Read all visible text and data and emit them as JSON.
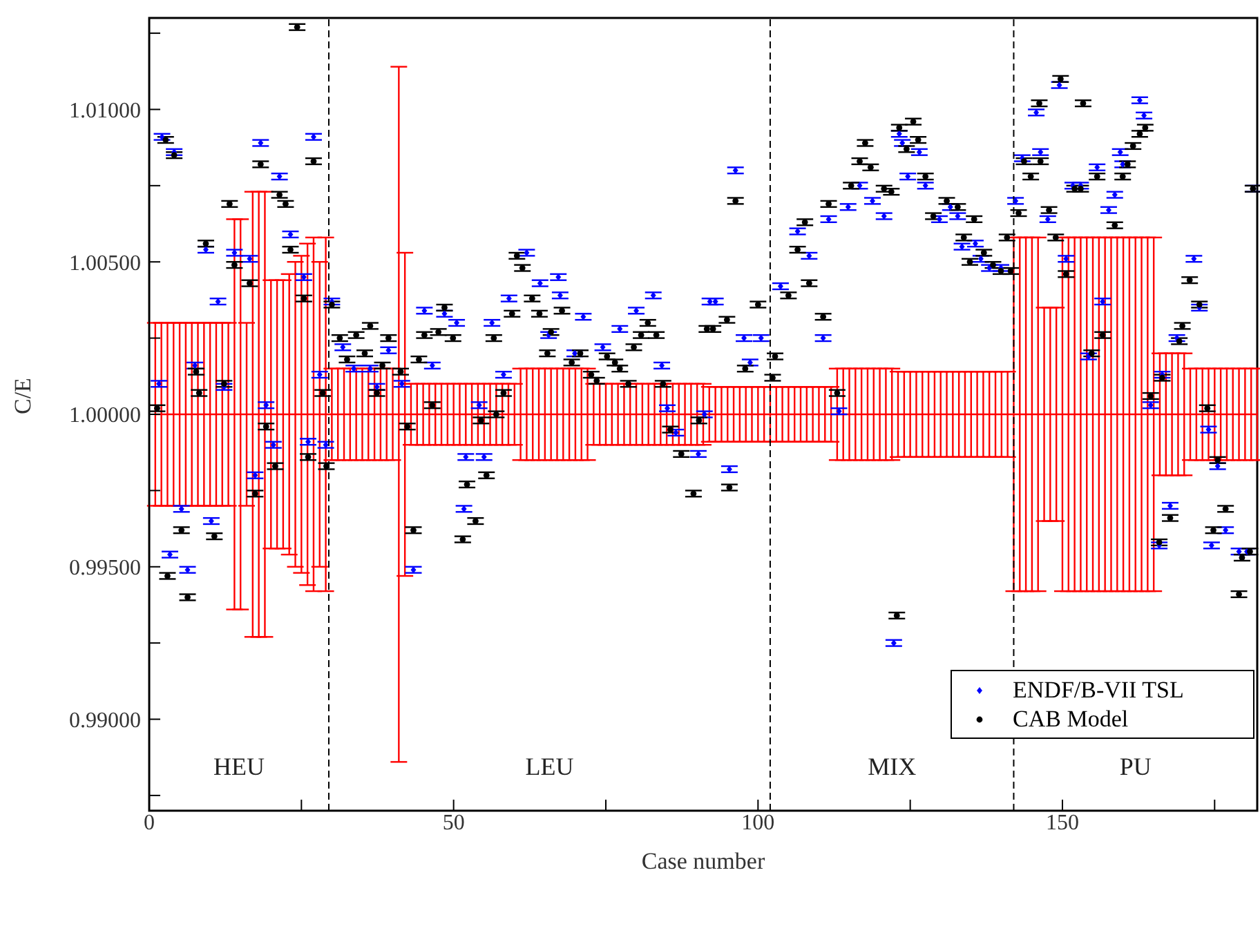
{
  "chart_data": {
    "type": "scatter",
    "xlabel": "Case number",
    "ylabel": "C/E",
    "xlim": [
      0,
      182
    ],
    "xticks": [
      0,
      {
        "value": 25,
        "label": null
      },
      50,
      {
        "value": 75,
        "label": null
      },
      100,
      {
        "value": 125,
        "label": null
      },
      150,
      {
        "value": 175,
        "label": null
      }
    ],
    "ylim": [
      0.987,
      1.013
    ],
    "yticks": [
      {
        "value": 0.9875,
        "label": null
      },
      {
        "value": 0.99,
        "label": "0.99000"
      },
      {
        "value": 0.9925,
        "label": null
      },
      {
        "value": 0.995,
        "label": "0.99500"
      },
      {
        "value": 0.9975,
        "label": null
      },
      {
        "value": 1.0,
        "label": "1.00000"
      },
      {
        "value": 1.0025,
        "label": null
      },
      {
        "value": 1.005,
        "label": "1.00500"
      },
      {
        "value": 1.0075,
        "label": null
      },
      {
        "value": 1.01,
        "label": "1.01000"
      },
      {
        "value": 1.0125,
        "label": null
      }
    ],
    "grid": false,
    "legend": "bottom right",
    "ref_lines": [
      {
        "axis": "x",
        "value": 29.5,
        "color": "#000000",
        "line_style": "dashed"
      },
      {
        "axis": "x",
        "value": 102,
        "color": "#000000",
        "line_style": "dashed"
      },
      {
        "axis": "x",
        "value": 142,
        "color": "#000000",
        "line_style": "dashed"
      }
    ],
    "annotations": [
      "HEU",
      "LEU",
      "MIX",
      "PU"
    ],
    "series": [
      {
        "type": "line",
        "color": "#ff0000",
        "marker": "none",
        "line_style": "solid",
        "x": [
          1,
          2,
          3,
          4,
          5,
          6,
          7,
          8,
          9,
          10,
          11,
          12,
          13,
          14,
          15,
          16,
          17,
          18,
          19,
          20,
          21,
          22,
          23,
          24,
          25,
          26,
          27,
          28,
          29,
          30,
          31,
          32,
          33,
          34,
          35,
          36,
          37,
          38,
          39,
          40,
          41,
          42,
          43,
          44,
          45,
          46,
          47,
          48,
          49,
          50,
          51,
          52,
          53,
          54,
          55,
          56,
          57,
          58,
          59,
          60,
          61,
          62,
          63,
          64,
          65,
          66,
          67,
          68,
          69,
          70,
          71,
          72,
          73,
          74,
          75,
          76,
          77,
          78,
          79,
          80,
          81,
          82,
          83,
          84,
          85,
          86,
          87,
          88,
          89,
          90,
          91,
          92,
          93,
          94,
          95,
          96,
          97,
          98,
          99,
          100,
          101,
          102,
          103,
          104,
          105,
          106,
          107,
          108,
          109,
          110,
          111,
          112,
          113,
          114,
          115,
          116,
          117,
          118,
          119,
          120,
          121,
          122,
          123,
          124,
          125,
          126,
          127,
          128,
          129,
          130,
          131,
          132,
          133,
          134,
          135,
          136,
          137,
          138,
          139,
          140,
          141,
          142,
          143,
          144,
          145,
          146,
          147,
          148,
          149,
          150,
          151,
          152,
          153,
          154,
          155,
          156,
          157,
          158,
          159,
          160,
          161,
          162,
          163,
          164,
          165,
          166,
          167,
          168,
          169,
          170,
          171,
          172,
          173,
          174,
          175,
          176,
          177,
          178,
          179,
          180,
          181,
          182
        ],
        "values": [
          1,
          1,
          1,
          1,
          1,
          1,
          1,
          1,
          1,
          1,
          1,
          1,
          1,
          1,
          1,
          1,
          1,
          1,
          1,
          1,
          1,
          1,
          1,
          1,
          1,
          1,
          1,
          1,
          1,
          1,
          1,
          1,
          1,
          1,
          1,
          1,
          1,
          1,
          1,
          1,
          1,
          1,
          1,
          1,
          1,
          1,
          1,
          1,
          1,
          1,
          1,
          1,
          1,
          1,
          1,
          1,
          1,
          1,
          1,
          1,
          1,
          1,
          1,
          1,
          1,
          1,
          1,
          1,
          1,
          1,
          1,
          1,
          1,
          1,
          1,
          1,
          1,
          1,
          1,
          1,
          1,
          1,
          1,
          1,
          1,
          1,
          1,
          1,
          1,
          1,
          1,
          1,
          1,
          1,
          1,
          1,
          1,
          1,
          1,
          1,
          1,
          1,
          1,
          1,
          1,
          1,
          1,
          1,
          1,
          1,
          1,
          1,
          1,
          1,
          1,
          1,
          1,
          1,
          1,
          1,
          1,
          1,
          1,
          1,
          1,
          1,
          1,
          1,
          1,
          1,
          1,
          1,
          1,
          1,
          1,
          1,
          1,
          1,
          1,
          1,
          1,
          1,
          1,
          1,
          1,
          1,
          1,
          1,
          1,
          1,
          1,
          1,
          1,
          1,
          1,
          1,
          1,
          1,
          1,
          1,
          1,
          1,
          1,
          1,
          1,
          1,
          1,
          1,
          1,
          1,
          1,
          1,
          1,
          1,
          1,
          1,
          1,
          1,
          1,
          1,
          1,
          1
        ],
        "errors": [
          0.003,
          0.003,
          0.003,
          0.003,
          0.003,
          0.003,
          0.003,
          0.003,
          0.003,
          0.003,
          0.003,
          0.003,
          0.003,
          0.0064,
          0.0064,
          0.003,
          0.0073,
          0.0073,
          0.0073,
          0.0044,
          0.0044,
          0.0044,
          0.0046,
          0.005,
          0.0052,
          0.0056,
          0.0058,
          0.005,
          0.0058,
          0.0015,
          0.0015,
          0.0015,
          0.0015,
          0.0015,
          0.0015,
          0.0015,
          0.0015,
          0.0015,
          0.0015,
          0.0015,
          0.0114,
          0.0053,
          0.001,
          0.001,
          0.001,
          0.001,
          0.001,
          0.001,
          0.001,
          0.001,
          0.001,
          0.001,
          0.001,
          0.001,
          0.001,
          0.001,
          0.001,
          0.001,
          0.001,
          0.001,
          0.0015,
          0.0015,
          0.0015,
          0.0015,
          0.0015,
          0.0015,
          0.0015,
          0.0015,
          0.0015,
          0.0015,
          0.0015,
          0.0015,
          0.001,
          0.001,
          0.001,
          0.001,
          0.001,
          0.001,
          0.001,
          0.001,
          0.001,
          0.001,
          0.001,
          0.001,
          0.001,
          0.001,
          0.001,
          0.001,
          0.001,
          0.001,
          0.001,
          0.0009,
          0.0009,
          0.0009,
          0.0009,
          0.0009,
          0.0009,
          0.0009,
          0.0009,
          0.0009,
          0.0009,
          0.0009,
          0.0009,
          0.0009,
          0.0009,
          0.0009,
          0.0009,
          0.0009,
          0.0009,
          0.0009,
          0.0009,
          0.0009,
          0.0015,
          0.0015,
          0.0015,
          0.0015,
          0.0015,
          0.0015,
          0.0015,
          0.0015,
          0.0015,
          0.0015,
          0.0014,
          0.0014,
          0.0014,
          0.0014,
          0.0014,
          0.0014,
          0.0014,
          0.0014,
          0.0014,
          0.0014,
          0.0014,
          0.0014,
          0.0014,
          0.0014,
          0.0014,
          0.0014,
          0.0014,
          0.0014,
          0.0014,
          0.0058,
          0.0058,
          0.0058,
          0.0058,
          0.0058,
          0.0035,
          0.0035,
          0.0035,
          0.0058,
          0.0058,
          0.0058,
          0.0058,
          0.0058,
          0.0058,
          0.0058,
          0.0058,
          0.0058,
          0.0058,
          0.0058,
          0.0058,
          0.0058,
          0.0058,
          0.0058,
          0.0058,
          0.002,
          0.002,
          0.002,
          0.002,
          0.002,
          0.0015,
          0.0015,
          0.0015,
          0.0015,
          0.0015,
          0.0015,
          0.0015,
          0.0015,
          0.0015,
          0.0015,
          0.0015,
          0.0015
        ]
      },
      {
        "name": "ENDF/B-VII TSL",
        "color": "#0000ff",
        "marker": "diamond",
        "x": [
          1.6,
          2.1,
          4.1,
          3.4,
          6.3,
          5.3,
          7.5,
          9.3,
          10.2,
          12.3,
          11.3,
          14,
          16.5,
          17.4,
          18.3,
          19.2,
          20.4,
          21.4,
          23.2,
          25.4,
          27,
          26.1,
          28,
          29,
          30,
          31.8,
          33.6,
          36.3,
          39.3,
          37.4,
          41.5,
          43.4,
          45.2,
          46.5,
          48.5,
          50.5,
          51.7,
          52,
          55,
          54.2,
          56.3,
          59.1,
          58.2,
          62,
          64.2,
          67.2,
          67.5,
          65.6,
          71.3,
          69.9,
          74.5,
          77.3,
          80,
          82.8,
          84.2,
          85.1,
          86.5,
          90.2,
          91.2,
          92.1,
          96.3,
          95.3,
          93,
          97.7,
          98.7,
          100.5,
          103.7,
          106.5,
          108.4,
          110.7,
          111.6,
          113.3,
          114.8,
          116.7,
          118.8,
          120.7,
          122.3,
          123.2,
          123.7,
          126.5,
          124.6,
          127.5,
          129.8,
          131.6,
          132.8,
          133.5,
          135.7,
          136.6,
          138,
          139.9,
          142.3,
          143.4,
          145.7,
          146.4,
          147.6,
          149.5,
          150.6,
          151.7,
          153,
          155.7,
          154.3,
          156.6,
          158.6,
          157.6,
          159.9,
          159.5,
          162.7,
          163.4,
          164.5,
          165.9,
          166.4,
          167.7,
          168.8,
          171.6,
          172.5,
          174,
          174.5,
          175.5,
          176.8,
          179,
          180.3,
          181.4
        ],
        "values": [
          1.001,
          1.0091,
          1.0086,
          0.9954,
          0.9949,
          0.9969,
          1.0016,
          1.0054,
          0.9965,
          1.0009,
          1.0037,
          1.0053,
          1.0051,
          0.998,
          1.0089,
          1.0003,
          0.999,
          1.0078,
          1.0059,
          1.0045,
          1.0091,
          0.9991,
          1.0013,
          0.999,
          1.0037,
          1.0022,
          1.0015,
          1.0015,
          1.0021,
          1.0009,
          1.001,
          0.9949,
          1.0034,
          1.0016,
          1.0033,
          1.003,
          0.9969,
          0.9986,
          0.9986,
          1.0003,
          1.003,
          1.0038,
          1.0013,
          1.0053,
          1.0043,
          1.0045,
          1.0039,
          1.0026,
          1.0032,
          1.002,
          1.0022,
          1.0028,
          1.0034,
          1.0039,
          1.0016,
          1.0002,
          0.9994,
          0.9987,
          1.0,
          1.0037,
          1.008,
          0.9982,
          1.0037,
          1.0025,
          1.0017,
          1.0025,
          1.0042,
          1.006,
          1.0052,
          1.0025,
          1.0064,
          1.0001,
          1.0068,
          1.0075,
          1.007,
          1.0065,
          0.9925,
          1.0092,
          1.0089,
          1.0086,
          1.0078,
          1.0075,
          1.0064,
          1.0068,
          1.0065,
          1.0055,
          1.0056,
          1.0051,
          1.0048,
          1.0048,
          1.007,
          1.0084,
          1.0099,
          1.0086,
          1.0064,
          1.0108,
          1.0051,
          1.0075,
          1.0075,
          1.0081,
          1.0019,
          1.0037,
          1.0072,
          1.0067,
          1.0082,
          1.0086,
          1.0103,
          1.0098,
          1.0003,
          0.9957,
          1.0013,
          0.997,
          1.0025,
          1.0051,
          1.0035,
          0.9995,
          0.9957,
          0.9983,
          0.9962,
          0.9955,
          0.9955,
          1.0074
        ],
        "errors": [
          0.0001,
          0.0001,
          0.0001,
          0.0001,
          0.0001,
          0.0001,
          0.0001,
          0.0001,
          0.0001,
          0.0001,
          0.0001,
          0.0001,
          0.0001,
          0.0001,
          0.0001,
          0.0001,
          0.0001,
          0.0001,
          0.0001,
          0.0001,
          0.0001,
          0.0001,
          0.0001,
          0.0001,
          0.0001,
          0.0001,
          0.0001,
          0.0001,
          0.0001,
          0.0001,
          0.0001,
          0.0001,
          0.0001,
          0.0001,
          0.0001,
          0.0001,
          0.0001,
          0.0001,
          0.0001,
          0.0001,
          0.0001,
          0.0001,
          0.0001,
          0.0001,
          0.0001,
          0.0001,
          0.0001,
          0.0001,
          0.0001,
          0.0001,
          0.0001,
          0.0001,
          0.0001,
          0.0001,
          0.0001,
          0.0001,
          0.0001,
          0.0001,
          0.0001,
          0.0001,
          0.0001,
          0.0001,
          0.0001,
          0.0001,
          0.0001,
          0.0001,
          0.0001,
          0.0001,
          0.0001,
          0.0001,
          0.0001,
          0.0001,
          0.0001,
          0.0001,
          0.0001,
          0.0001,
          0.0001,
          0.0001,
          0.0001,
          0.0001,
          0.0001,
          0.0001,
          0.0001,
          0.0001,
          0.0001,
          0.0001,
          0.0001,
          0.0001,
          0.0001,
          0.0001,
          0.0001,
          0.0001,
          0.0001,
          0.0001,
          0.0001,
          0.0001,
          0.0001,
          0.0001,
          0.0001,
          0.0001,
          0.0001,
          0.0001,
          0.0001,
          0.0001,
          0.0001,
          0.0001,
          0.0001,
          0.0001,
          0.0001,
          0.0001,
          0.0001,
          0.0001,
          0.0001,
          0.0001,
          0.0001,
          0.0001,
          0.0001,
          0.0001,
          0.0001,
          0.0001,
          0.0001,
          0.0001
        ]
      },
      {
        "name": "CAB Model",
        "color": "#000000",
        "marker": "circle",
        "x": [
          1.3,
          2.7,
          4.1,
          3,
          5.3,
          6.3,
          7.7,
          8.2,
          9.3,
          10.7,
          12.3,
          13.2,
          14,
          16.5,
          17.4,
          18.3,
          19.2,
          20.7,
          21.4,
          22.4,
          23.2,
          24.3,
          25.4,
          26.1,
          27,
          28.5,
          29.1,
          30,
          31.3,
          34,
          36.3,
          39.3,
          32.5,
          35.4,
          38.3,
          41.3,
          37.4,
          42.4,
          43.4,
          44.3,
          46.5,
          45.2,
          47.5,
          48.5,
          49.9,
          51.5,
          52.2,
          53.6,
          55.4,
          54.5,
          57,
          56.6,
          59.6,
          58.2,
          60.4,
          61.3,
          62.9,
          64.1,
          67.8,
          66,
          65.4,
          69.4,
          70.8,
          72.6,
          73.5,
          75.2,
          76.5,
          77.3,
          78.7,
          79.6,
          80.8,
          81.9,
          83.3,
          84.4,
          85.6,
          87.4,
          89.4,
          90.3,
          91.6,
          92.6,
          94.9,
          96.3,
          95.3,
          97.9,
          100,
          102.8,
          102.4,
          105,
          106.5,
          107.7,
          108.4,
          110.7,
          111.6,
          113,
          115.3,
          116.7,
          117.6,
          118.5,
          120.7,
          122.8,
          123.2,
          125.5,
          126.3,
          124.4,
          127.5,
          121.9,
          128.8,
          131,
          132.8,
          133.8,
          135.5,
          134.8,
          137.1,
          138.6,
          139.9,
          140.9,
          141.5,
          142.8,
          143.7,
          144.8,
          146.2,
          146.4,
          147.8,
          148.9,
          149.7,
          150.6,
          152,
          153.4,
          153,
          155.7,
          154.8,
          156.6,
          158.6,
          159.9,
          160.7,
          161.6,
          162.7,
          163.6,
          164.5,
          165.9,
          166.4,
          167.7,
          169.2,
          169.7,
          170.9,
          172.5,
          173.8,
          174.8,
          175.5,
          176.8,
          179,
          179.5,
          180.8,
          181.3
        ],
        "values": [
          1.0002,
          1.009,
          1.0085,
          0.9947,
          0.9962,
          0.994,
          1.0014,
          1.0007,
          1.0056,
          0.996,
          1.001,
          1.0069,
          1.0049,
          1.0043,
          0.9974,
          1.0082,
          0.9996,
          0.9983,
          1.0072,
          1.0069,
          1.0054,
          1.0127,
          1.0038,
          0.9986,
          1.0083,
          1.0007,
          0.9983,
          1.0036,
          1.0025,
          1.0026,
          1.0029,
          1.0025,
          1.0018,
          1.002,
          1.0016,
          1.0014,
          1.0007,
          0.9996,
          0.9962,
          1.0018,
          1.0003,
          1.0026,
          1.0027,
          1.0035,
          1.0025,
          0.9959,
          0.9977,
          0.9965,
          0.998,
          0.9998,
          1.0,
          1.0025,
          1.0033,
          1.0007,
          1.0052,
          1.0048,
          1.0038,
          1.0033,
          1.0034,
          1.0027,
          1.002,
          1.0017,
          1.002,
          1.0013,
          1.0011,
          1.0019,
          1.0017,
          1.0015,
          1.001,
          1.0022,
          1.0026,
          1.003,
          1.0026,
          1.001,
          0.9995,
          0.9987,
          0.9974,
          0.9998,
          1.0028,
          1.0028,
          1.0031,
          1.007,
          0.9976,
          1.0015,
          1.0036,
          1.0019,
          1.0012,
          1.0039,
          1.0054,
          1.0063,
          1.0043,
          1.0032,
          1.0069,
          1.0007,
          1.0075,
          1.0083,
          1.0089,
          1.0081,
          1.0074,
          0.9934,
          1.0094,
          1.0096,
          1.009,
          1.0087,
          1.0078,
          1.0073,
          1.0065,
          1.007,
          1.0068,
          1.0058,
          1.0064,
          1.005,
          1.0053,
          1.0049,
          1.0047,
          1.0058,
          1.0047,
          1.0066,
          1.0083,
          1.0078,
          1.0102,
          1.0083,
          1.0067,
          1.0058,
          1.011,
          1.0046,
          1.0074,
          1.0102,
          1.0074,
          1.0078,
          1.002,
          1.0026,
          1.0062,
          1.0078,
          1.0082,
          1.0088,
          1.0092,
          1.0094,
          1.0006,
          0.9958,
          1.0012,
          0.9966,
          1.0024,
          1.0029,
          1.0044,
          1.0036,
          1.0002,
          0.9962,
          0.9985,
          0.9969,
          0.9941,
          0.9953,
          0.9955,
          1.0074
        ],
        "errors": [
          0.0001,
          0.0001,
          0.0001,
          0.0001,
          0.0001,
          0.0001,
          0.0001,
          0.0001,
          0.0001,
          0.0001,
          0.0001,
          0.0001,
          0.0001,
          0.0001,
          0.0001,
          0.0001,
          0.0001,
          0.0001,
          0.0001,
          0.0001,
          0.0001,
          0.0001,
          0.0001,
          0.0001,
          0.0001,
          0.0001,
          0.0001,
          0.0001,
          0.0001,
          0.0001,
          0.0001,
          0.0001,
          0.0001,
          0.0001,
          0.0001,
          0.0001,
          0.0001,
          0.0001,
          0.0001,
          0.0001,
          0.0001,
          0.0001,
          0.0001,
          0.0001,
          0.0001,
          0.0001,
          0.0001,
          0.0001,
          0.0001,
          0.0001,
          0.0001,
          0.0001,
          0.0001,
          0.0001,
          0.0001,
          0.0001,
          0.0001,
          0.0001,
          0.0001,
          0.0001,
          0.0001,
          0.0001,
          0.0001,
          0.0001,
          0.0001,
          0.0001,
          0.0001,
          0.0001,
          0.0001,
          0.0001,
          0.0001,
          0.0001,
          0.0001,
          0.0001,
          0.0001,
          0.0001,
          0.0001,
          0.0001,
          0.0001,
          0.0001,
          0.0001,
          0.0001,
          0.0001,
          0.0001,
          0.0001,
          0.0001,
          0.0001,
          0.0001,
          0.0001,
          0.0001,
          0.0001,
          0.0001,
          0.0001,
          0.0001,
          0.0001,
          0.0001,
          0.0001,
          0.0001,
          0.0001,
          0.0001,
          0.0001,
          0.0001,
          0.0001,
          0.0001,
          0.0001,
          0.0001,
          0.0001,
          0.0001,
          0.0001,
          0.0001,
          0.0001,
          0.0001,
          0.0001,
          0.0001,
          0.0001,
          0.0001,
          0.0001,
          0.0001,
          0.0001,
          0.0001,
          0.0001,
          0.0001,
          0.0001,
          0.0001,
          0.0001,
          0.0001,
          0.0001,
          0.0001,
          0.0001,
          0.0001,
          0.0001,
          0.0001,
          0.0001,
          0.0001,
          0.0001,
          0.0001,
          0.0001,
          0.0001,
          0.0001,
          0.0001,
          0.0001,
          0.0001,
          0.0001,
          0.0001,
          0.0001,
          0.0001,
          0.0001,
          0.0001,
          0.0001,
          0.0001,
          0.0001,
          0.0001,
          0.0001,
          0.0001
        ]
      }
    ]
  }
}
